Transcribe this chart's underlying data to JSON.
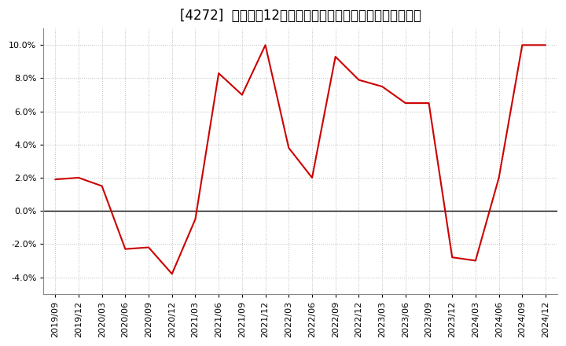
{
  "title": "[4272]  売上高の12か月移動合計の対前年同期増減率の推移",
  "line_color": "#cc0000",
  "background_color": "#ffffff",
  "plot_bg_color": "#ffffff",
  "grid_color": "#bbbbbb",
  "ylim": [
    -0.05,
    0.11
  ],
  "yticks": [
    -0.04,
    -0.02,
    0.0,
    0.02,
    0.04,
    0.06,
    0.08,
    0.1
  ],
  "dates": [
    "2019/09",
    "2019/12",
    "2020/03",
    "2020/06",
    "2020/09",
    "2020/12",
    "2021/03",
    "2021/06",
    "2021/09",
    "2021/12",
    "2022/03",
    "2022/06",
    "2022/09",
    "2022/12",
    "2023/03",
    "2023/06",
    "2023/09",
    "2023/12",
    "2024/03",
    "2024/06",
    "2024/09",
    "2024/12"
  ],
  "values": [
    0.019,
    0.02,
    0.015,
    -0.023,
    -0.022,
    -0.038,
    -0.005,
    0.083,
    0.07,
    0.1,
    0.038,
    0.02,
    0.093,
    0.079,
    0.075,
    0.065,
    0.065,
    -0.028,
    -0.03,
    0.02,
    0.1,
    0.1
  ],
  "title_fontsize": 12,
  "tick_fontsize": 8,
  "figsize": [
    7.2,
    4.4
  ],
  "dpi": 100
}
